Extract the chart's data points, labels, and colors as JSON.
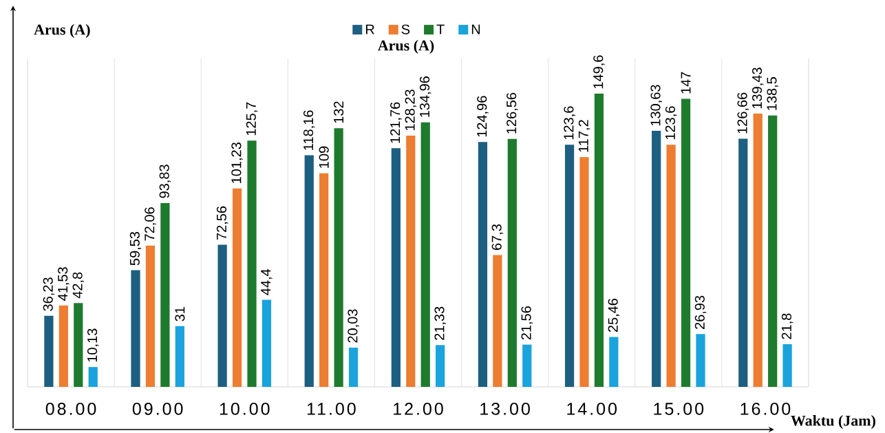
{
  "chart_data": {
    "type": "bar",
    "title": "Arus (A)",
    "ylabel": "Arus (A)",
    "xlabel": "Waktu (Jam)",
    "categories": [
      "08.00",
      "09.00",
      "10.00",
      "11.00",
      "12.00",
      "13.00",
      "14.00",
      "15.00",
      "16.00"
    ],
    "series": [
      {
        "name": "R",
        "color": "#1d5f80",
        "values": [
          36.23,
          59.53,
          72.56,
          118.16,
          121.76,
          124.96,
          123.6,
          130.63,
          126.66
        ],
        "value_labels": [
          "36,23",
          "59,53",
          "72,56",
          "118,16",
          "121,76",
          "124,96",
          "123,6",
          "130,63",
          "126,66"
        ]
      },
      {
        "name": "S",
        "color": "#ed7d31",
        "values": [
          41.53,
          72.06,
          101.23,
          109,
          128.23,
          67.3,
          117.2,
          123.6,
          139.43
        ],
        "value_labels": [
          "41,53",
          "72,06",
          "101,23",
          "109",
          "128,23",
          "67,3",
          "117,2",
          "123,6",
          "139,43"
        ]
      },
      {
        "name": "T",
        "color": "#1e7b2e",
        "values": [
          42.8,
          93.83,
          125.7,
          132,
          134.96,
          126.56,
          149.6,
          147,
          138.5
        ],
        "value_labels": [
          "42,8",
          "93,83",
          "125,7",
          "132",
          "134,96",
          "126,56",
          "149,6",
          "147",
          "138,5"
        ]
      },
      {
        "name": "N",
        "color": "#1aa3dc",
        "values": [
          10.13,
          31,
          44.4,
          20.03,
          21.33,
          21.56,
          25.46,
          26.93,
          21.8
        ],
        "value_labels": [
          "10,13",
          "31",
          "44,4",
          "20,03",
          "21,33",
          "21,56",
          "25,46",
          "26,93",
          "21,8"
        ]
      }
    ],
    "grid": "x",
    "legend": "top"
  }
}
